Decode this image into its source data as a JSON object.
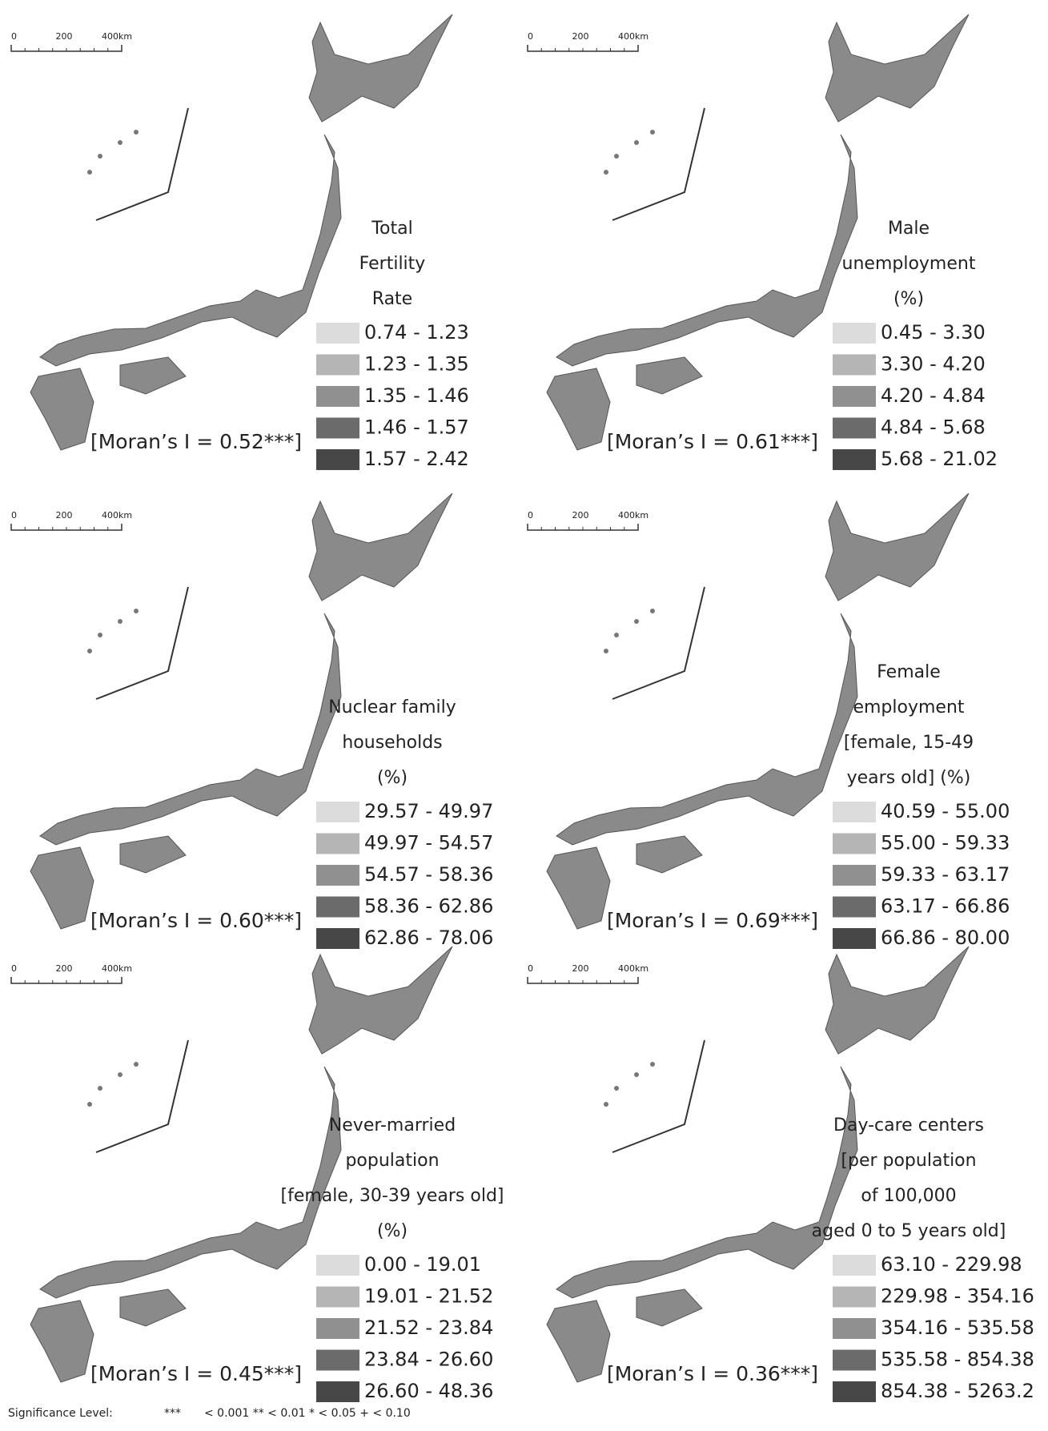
{
  "legend_colors": [
    "#dcdcdc",
    "#b5b5b5",
    "#909090",
    "#6b6b6b",
    "#474747"
  ],
  "scale_labels": [
    "0",
    "200",
    "400km"
  ],
  "panels": [
    {
      "title_lines": [
        "Total",
        "Fertility",
        "Rate"
      ],
      "legend": [
        "0.74 - 1.23",
        "1.23 - 1.35",
        "1.35 - 1.46",
        "1.46 - 1.57",
        "1.57 - 2.42"
      ],
      "moran": "[Moran’s I = 0.52***]"
    },
    {
      "title_lines": [
        "Male",
        "unemployment",
        "(%)"
      ],
      "legend": [
        "0.45 - 3.30",
        "3.30 - 4.20",
        "4.20 - 4.84",
        "4.84 - 5.68",
        "5.68 - 21.02"
      ],
      "moran": "[Moran’s I = 0.61***]"
    },
    {
      "title_lines": [
        "Nuclear family",
        "households",
        "(%)"
      ],
      "legend": [
        "29.57 - 49.97",
        "49.97 - 54.57",
        "54.57 - 58.36",
        "58.36 - 62.86",
        "62.86 - 78.06"
      ],
      "moran": "[Moran’s I = 0.60***]"
    },
    {
      "title_lines": [
        "Female",
        "employment",
        "[female, 15-49",
        "years old] (%)"
      ],
      "legend": [
        "40.59 - 55.00",
        "55.00 - 59.33",
        "59.33 - 63.17",
        "63.17 - 66.86",
        "66.86 - 80.00"
      ],
      "moran": "[Moran’s I = 0.69***]"
    },
    {
      "title_lines": [
        "Never-married",
        "population",
        "[female, 30-39 years old]",
        "(%)"
      ],
      "legend": [
        "0.00 - 19.01",
        "19.01 - 21.52",
        "21.52 - 23.84",
        "23.84 - 26.60",
        "26.60 - 48.36"
      ],
      "moran": "[Moran’s I = 0.45***]"
    },
    {
      "title_lines": [
        "Day-care centers",
        "[per population",
        "of 100,000",
        "aged 0 to 5 years old]"
      ],
      "legend": [
        "63.10 - 229.98",
        "229.98 - 354.16",
        "354.16 - 535.58",
        "535.58 - 854.38",
        "854.38 - 5263.2"
      ],
      "moran": "[Moran’s I = 0.36***]"
    }
  ],
  "footer": {
    "label": "Significance Level:",
    "stars": "***",
    "levels": "< 0.001 ** < 0.01 * < 0.05 + < 0.10"
  }
}
